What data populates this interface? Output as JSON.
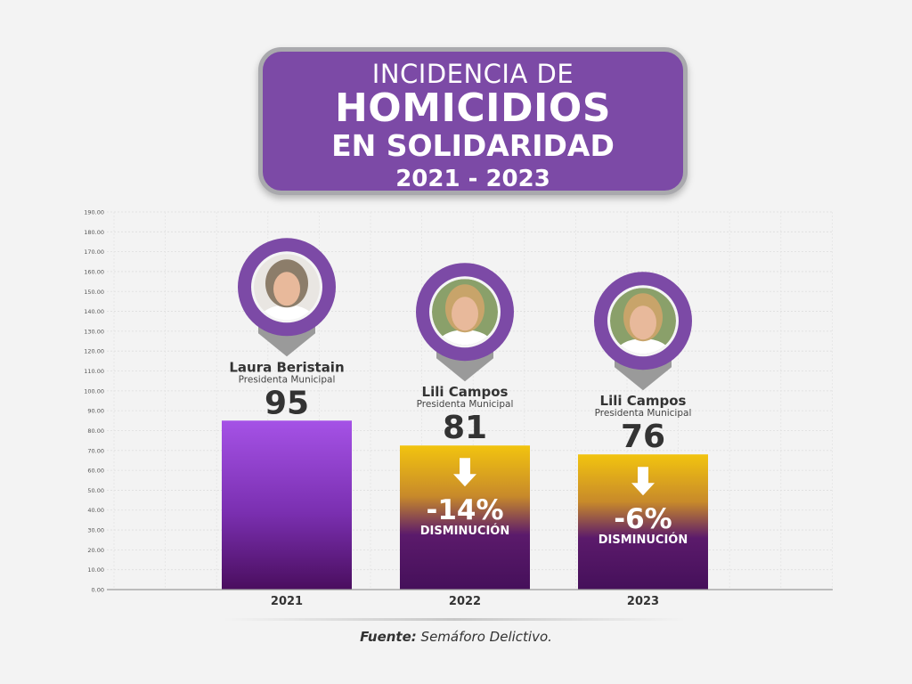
{
  "title": {
    "line1": "INCIDENCIA DE",
    "line2": "HOMICIDIOS",
    "line3": "EN SOLIDARIDAD",
    "line4": "2021 - 2023"
  },
  "source": {
    "label": "Fuente:",
    "text": "Semáforo Delictivo."
  },
  "colors": {
    "purple": "#7c4aa6",
    "bar_top_2021": "#a552e6",
    "bar_top_gold": "#f2c40f",
    "bar_bottom": "#4a0e5e",
    "value_text": "#333333"
  },
  "chart_data": {
    "type": "bar",
    "categories": [
      "2021",
      "2022",
      "2023"
    ],
    "values": [
      95,
      81,
      76
    ],
    "ylim": [
      0,
      190
    ],
    "ytick_labels": [
      "0.00",
      "10.00",
      "20.00",
      "30.00",
      "40.00",
      "50.00",
      "60.00",
      "70.00",
      "80.00",
      "90.00",
      "100.00",
      "110.00",
      "120.00",
      "130.00",
      "140.00",
      "150.00",
      "160.00",
      "170.00",
      "180.00",
      "190.00"
    ],
    "grid": true,
    "bars": [
      {
        "year": "2021",
        "value_label": "95",
        "person": "Laura Beristain",
        "role": "Presidenta Municipal",
        "change": "",
        "change_label": ""
      },
      {
        "year": "2022",
        "value_label": "81",
        "person": "Lili Campos",
        "role": "Presidenta Municipal",
        "change": "-14%",
        "change_label": "DISMINUCIÓN"
      },
      {
        "year": "2023",
        "value_label": "76",
        "person": "Lili Campos",
        "role": "Presidenta Municipal",
        "change": "-6%",
        "change_label": "DISMINUCIÓN"
      }
    ]
  }
}
